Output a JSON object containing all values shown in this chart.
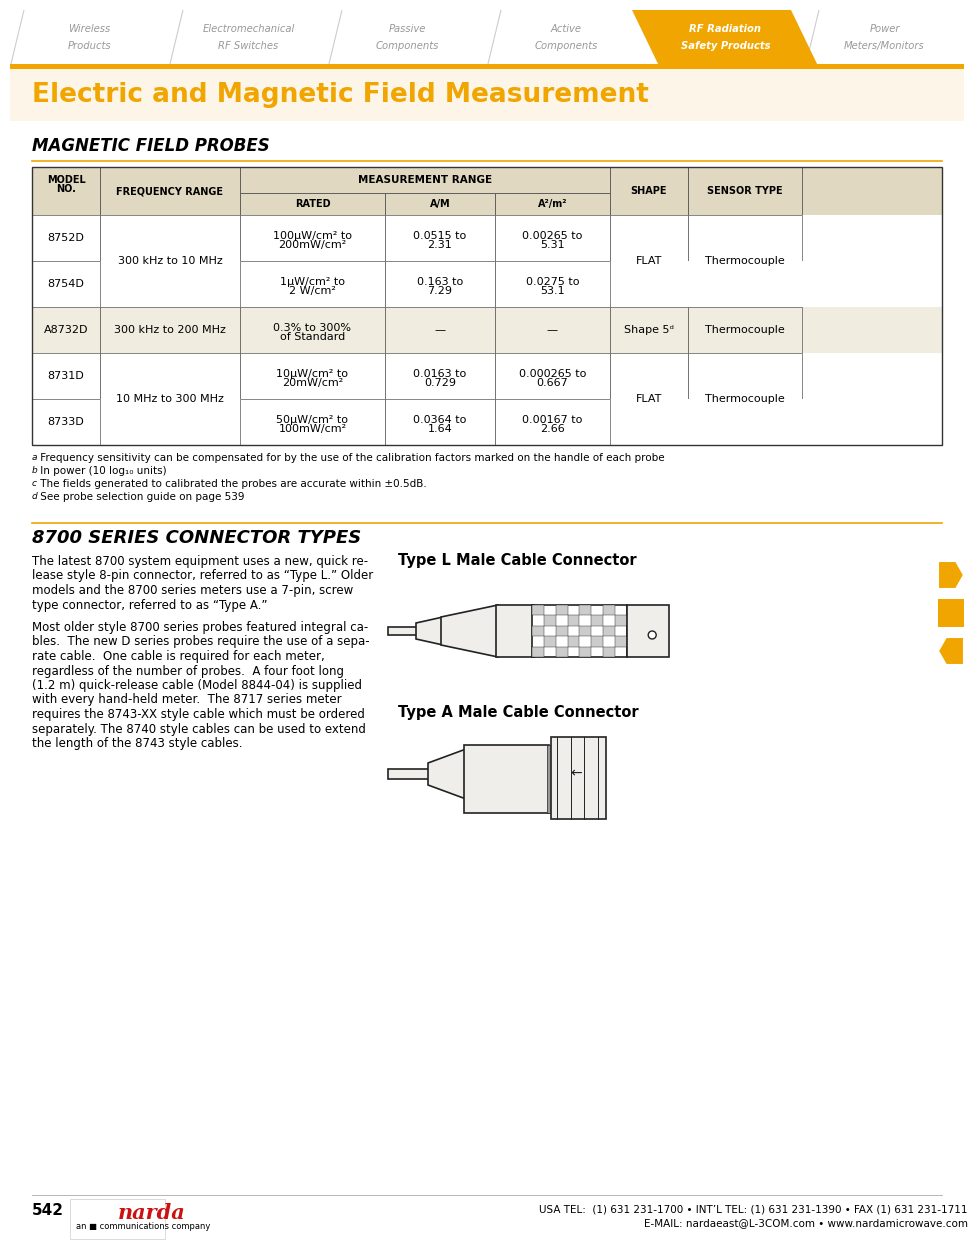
{
  "page_bg": "#ffffff",
  "light_header_bg": "#fdf6e8",
  "orange_color": "#f0a500",
  "title_text": "Electric and Magnetic Field Measurement",
  "nav_tabs": [
    "Wireless\nProducts",
    "Electromechanical\nRF Switches",
    "Passive\nComponents",
    "Active\nComponents",
    "RF Radiation\nSafety Products",
    "Power\nMeters/Monitors"
  ],
  "active_tab_index": 4,
  "section1_title": "MAGNETIC FIELD PROBES",
  "section2_title": "8700 SERIES CONNECTOR TYPES",
  "connector_text1": "Type L Male Cable Connector",
  "connector_text2": "Type A Male Cable Connector",
  "table_header_bg": "#e0d8c0",
  "table_alt_bg": "#f0ede0",
  "body_lines_p1": [
    "The latest 8700 system equipment uses a new, quick re-",
    "lease style 8-pin connector, referred to as “Type L.” Older",
    "models and the 8700 series meters use a 7-pin, screw",
    "type connector, referred to as “Type A.”"
  ],
  "body_lines_p2": [
    "Most older style 8700 series probes featured integral ca-",
    "bles.  The new D series probes require the use of a sepa-",
    "rate cable.  One cable is required for each meter,",
    "regardless of the number of probes.  A four foot long",
    "(1.2 m) quick-release cable (Model 8844-04) is supplied",
    "with every hand-held meter.  The 8717 series meter",
    "requires the 8743-XX style cable which must be ordered",
    "separately. The 8740 style cables can be used to extend",
    "the length of the 8743 style cables."
  ],
  "footer_page": "542",
  "footer_contact1": "USA TEL:  (1) 631 231-1700 • INT’L TEL: (1) 631 231-1390 • FAX (1) 631 231-1711",
  "footer_contact2": "E-MAIL: nardaeast@L-3COM.com • www.nardamicrowave.com"
}
